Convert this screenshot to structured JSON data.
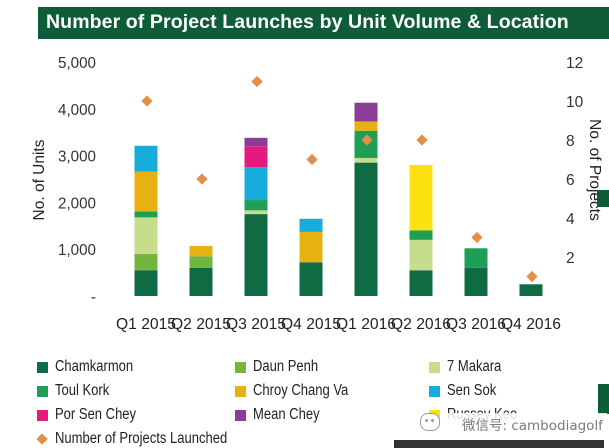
{
  "title": "Number of Project Launches by Unit Volume & Location",
  "watermark": "微信号: cambodiagolf",
  "colors": {
    "title_bar": "#0f5c38",
    "axis_text": "#333333",
    "diamond": "#e0904a",
    "grid_tick": "#bbbbbb"
  },
  "chart_data": {
    "type": "bar",
    "stacked": true,
    "categories": [
      "Q1 2015",
      "Q2 2015",
      "Q3 2015",
      "Q4 2015",
      "Q1 2016",
      "Q2 2016",
      "Q3 2016",
      "Q4 2016"
    ],
    "category_labels": [
      "Q1 2015",
      "Q2 2015",
      "Q3 2015",
      "Q4 2015",
      "Q1 2016",
      "Q2 2016",
      "Q3 2016",
      "Q4 2016"
    ],
    "ylabel": "No. of Units",
    "ylabel_right": "No. of Projects",
    "ylim": [
      0,
      5000
    ],
    "ylim_right": [
      0,
      12
    ],
    "yticks": [
      0,
      1000,
      2000,
      3000,
      4000,
      5000
    ],
    "ytick_labels": [
      "-",
      "1,000",
      "2,000",
      "3,000",
      "4,000",
      "5,000"
    ],
    "yticks_right": [
      0,
      2,
      4,
      6,
      8,
      10,
      12
    ],
    "ytick_labels_right": [
      "",
      "2",
      "4",
      "6",
      "8",
      "10",
      "12"
    ],
    "grid": false,
    "legend_position": "bottom",
    "series": [
      {
        "name": "Chamkarmon",
        "color": "#0e6b44",
        "values": [
          550,
          600,
          1750,
          720,
          2850,
          550,
          600,
          250
        ]
      },
      {
        "name": "Daun Penh",
        "color": "#72b640",
        "values": [
          350,
          250,
          0,
          0,
          0,
          0,
          0,
          0
        ]
      },
      {
        "name": "7 Makara",
        "color": "#c6dd8b",
        "values": [
          780,
          0,
          80,
          0,
          100,
          650,
          0,
          0
        ]
      },
      {
        "name": "Toul Kork",
        "color": "#1f9e56",
        "values": [
          130,
          0,
          220,
          0,
          580,
          200,
          420,
          0
        ]
      },
      {
        "name": "Chroy Chang Va",
        "color": "#e6b111",
        "values": [
          850,
          220,
          0,
          650,
          200,
          0,
          0,
          0
        ]
      },
      {
        "name": "Sen Sok",
        "color": "#17acd9",
        "values": [
          550,
          0,
          700,
          280,
          0,
          0,
          0,
          0
        ]
      },
      {
        "name": "Por Sen Chey",
        "color": "#e6197c",
        "values": [
          0,
          0,
          450,
          0,
          0,
          0,
          0,
          0
        ]
      },
      {
        "name": "Mean Chey",
        "color": "#8a3e97",
        "values": [
          0,
          0,
          180,
          0,
          400,
          0,
          0,
          0
        ]
      },
      {
        "name": "Russey Keo",
        "color": "#fbe10f",
        "values": [
          0,
          0,
          0,
          0,
          0,
          1400,
          0,
          0
        ]
      }
    ],
    "line_series": {
      "name": "Number of Projects Launched",
      "axis": "right",
      "marker": "diamond",
      "values": [
        10,
        6,
        11,
        7,
        8,
        8,
        3,
        1
      ]
    }
  },
  "legend": {
    "items": [
      {
        "label": "Chamkarmon",
        "color": "#0e6b44",
        "marker": "square"
      },
      {
        "label": "Daun Penh",
        "color": "#72b640",
        "marker": "square"
      },
      {
        "label": "7 Makara",
        "color": "#c6dd8b",
        "marker": "square"
      },
      {
        "label": "Toul Kork",
        "color": "#1f9e56",
        "marker": "square"
      },
      {
        "label": "Chroy Chang Va",
        "color": "#e6b111",
        "marker": "square"
      },
      {
        "label": "Sen Sok",
        "color": "#17acd9",
        "marker": "square"
      },
      {
        "label": "Por Sen Chey",
        "color": "#e6197c",
        "marker": "square"
      },
      {
        "label": "Mean Chey",
        "color": "#8a3e97",
        "marker": "square"
      },
      {
        "label": "Russey Keo",
        "color": "#fbe10f",
        "marker": "square"
      },
      {
        "label": "Number of Projects Launched",
        "color": "#e0904a",
        "marker": "diamond"
      }
    ]
  }
}
